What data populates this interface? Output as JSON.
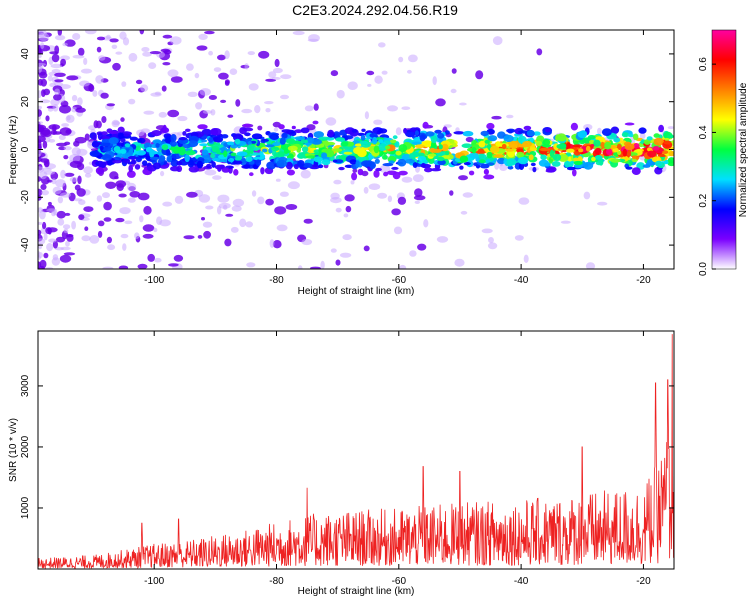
{
  "figure": {
    "title": "C2E3.2024.292.04.56.R19"
  },
  "chart_data": [
    {
      "type": "heatmap",
      "xlabel": "Height of straight line (km)",
      "ylabel": "Frequency (Hz)",
      "xlim": [
        -119,
        -15
      ],
      "ylim": [
        -50,
        50
      ],
      "x_ticks": [
        -100,
        -80,
        -60,
        -40,
        -20
      ],
      "y_ticks": [
        -40,
        -20,
        0,
        20,
        40
      ],
      "grid": false,
      "band": {
        "center_hz": 0,
        "half_width_hz": 6,
        "x_start": -110,
        "x_end": -15
      },
      "colorbar": {
        "label": "Normalized spectral amplitude",
        "range": [
          0.0,
          0.7
        ],
        "ticks": [
          "0.0",
          "0.2",
          "0.4",
          "0.6"
        ],
        "colors": [
          "#ffffff",
          "#7a00ff",
          "#0000ff",
          "#00e0ff",
          "#00ff40",
          "#ffff00",
          "#ff8000",
          "#ff0000",
          "#ff00a0"
        ]
      }
    },
    {
      "type": "line",
      "xlabel": "Height of straight line (km)",
      "ylabel": "SNR (10 * v/v)",
      "xlim": [
        -119,
        -15
      ],
      "ylim": [
        0,
        3900
      ],
      "x_ticks": [
        -100,
        -80,
        -60,
        -40,
        -20
      ],
      "y_ticks": [
        1000,
        2000,
        3000
      ],
      "grid": false,
      "series": [
        {
          "color": "#ee2222",
          "x": [
            -119,
            -115,
            -110,
            -105,
            -100,
            -95,
            -90,
            -85,
            -80,
            -75,
            -70,
            -65,
            -60,
            -55,
            -50,
            -45,
            -40,
            -35,
            -30,
            -25,
            -20,
            -18,
            -16,
            -15
          ],
          "y": [
            180,
            200,
            230,
            320,
            420,
            470,
            560,
            650,
            780,
            900,
            950,
            980,
            1000,
            1050,
            1100,
            1120,
            1150,
            1180,
            1250,
            1300,
            1400,
            1700,
            2300,
            2800
          ],
          "peaks": [
            {
              "x": -102,
              "y": 750
            },
            {
              "x": -96,
              "y": 820
            },
            {
              "x": -75,
              "y": 1330
            },
            {
              "x": -56,
              "y": 1680
            },
            {
              "x": -50,
              "y": 1600
            },
            {
              "x": -30,
              "y": 2000
            },
            {
              "x": -18,
              "y": 3050
            },
            {
              "x": -16,
              "y": 3100
            },
            {
              "x": -15.3,
              "y": 3850
            }
          ]
        }
      ]
    }
  ]
}
